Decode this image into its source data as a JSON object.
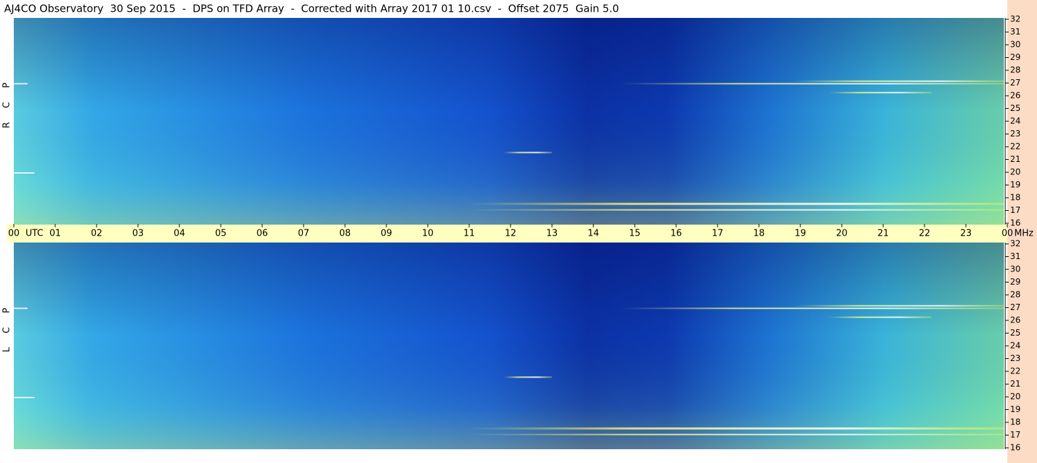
{
  "chart_data": {
    "type": "spectrogram",
    "title": "AJ4CO Observatory  30 Sep 2015  -  DPS on TFD Array  -  Corrected with Array 2017 01 10.csv  -  Offset 2075  Gain 5.0",
    "x_unit": "UTC",
    "y_unit": "MHz",
    "panels": [
      {
        "label": "R C P"
      },
      {
        "label": "L C P"
      }
    ],
    "xlim": [
      0,
      24
    ],
    "xticks": [
      {
        "value": 0,
        "label": "00"
      },
      {
        "value": 1,
        "label": "01"
      },
      {
        "value": 2,
        "label": "02"
      },
      {
        "value": 3,
        "label": "03"
      },
      {
        "value": 4,
        "label": "04"
      },
      {
        "value": 5,
        "label": "05"
      },
      {
        "value": 6,
        "label": "06"
      },
      {
        "value": 7,
        "label": "07"
      },
      {
        "value": 8,
        "label": "08"
      },
      {
        "value": 9,
        "label": "09"
      },
      10,
      11,
      12,
      13,
      14,
      15,
      16,
      17,
      18,
      19,
      20,
      21,
      22,
      23,
      {
        "value": 24,
        "label": "00"
      }
    ],
    "ylim": [
      16,
      32
    ],
    "yticks": [
      16,
      17,
      18,
      19,
      20,
      21,
      22,
      23,
      24,
      25,
      26,
      27,
      28,
      29,
      30,
      31,
      32
    ]
  }
}
